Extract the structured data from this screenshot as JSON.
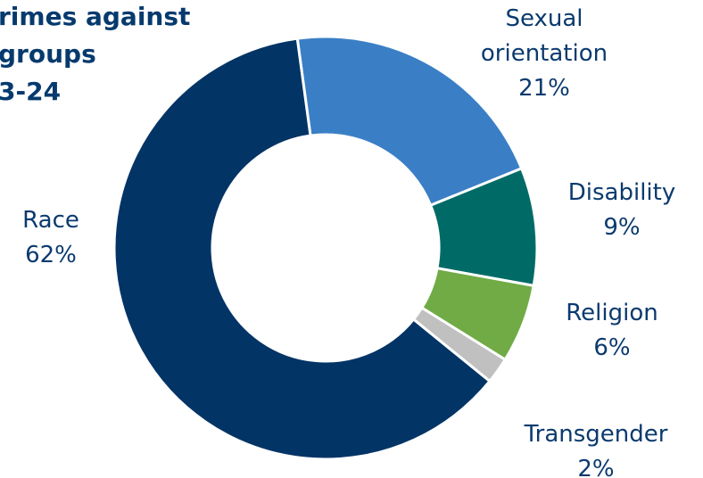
{
  "chart_data": {
    "type": "donut",
    "title_lines": [
      "rimes against",
      "groups",
      "3-24"
    ],
    "categories": [
      "Sexual orientation",
      "Disability",
      "Religion",
      "Transgender",
      "Race"
    ],
    "values": [
      21,
      9,
      6,
      2,
      62
    ],
    "value_labels": [
      "21%",
      "9%",
      "6%",
      "2%",
      "62%"
    ],
    "colors": [
      "#3a7fc6",
      "#006b66",
      "#70ab46",
      "#c0c0c0",
      "#033466"
    ]
  }
}
